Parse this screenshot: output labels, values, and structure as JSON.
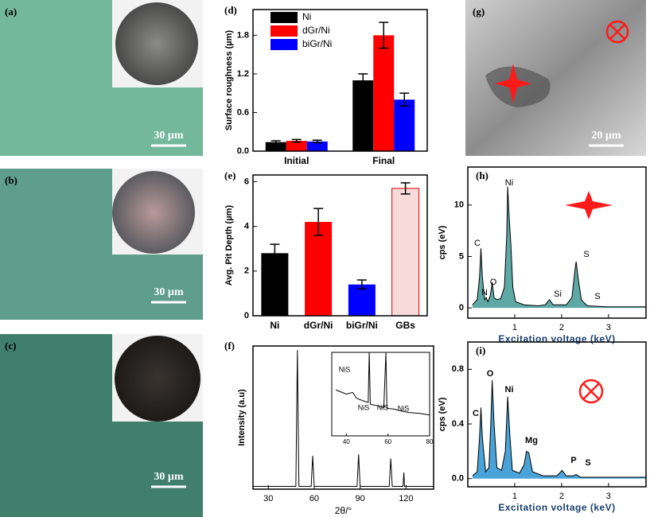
{
  "panels": [
    {
      "label": "(a)",
      "scale_bar": "30 µm"
    },
    {
      "label": "(b)",
      "scale_bar": "30 µm"
    },
    {
      "label": "(c)",
      "scale_bar": "30 µm"
    },
    {
      "label": "(g)",
      "scale_bar": "20 µm"
    }
  ],
  "chart_data": [
    {
      "type": "bar",
      "label": "(d)",
      "ylabel": "Surface roughness (µm)",
      "categories": [
        "Initial",
        "Final"
      ],
      "series": [
        {
          "name": "Ni",
          "color": "#000000",
          "values": [
            0.14,
            1.1
          ],
          "errors": [
            0.02,
            0.1
          ]
        },
        {
          "name": "dGr/Ni",
          "color": "#ff0000",
          "values": [
            0.16,
            1.8
          ],
          "errors": [
            0.02,
            0.2
          ]
        },
        {
          "name": "biGr/Ni",
          "color": "#0000ff",
          "values": [
            0.15,
            0.8
          ],
          "errors": [
            0.02,
            0.1
          ]
        }
      ],
      "ylim": [
        0,
        2.2
      ],
      "yticks": [
        {
          "value": 0,
          "label": "0.0"
        },
        0.6,
        1.2,
        1.8
      ],
      "legend": "upper left"
    },
    {
      "type": "bar",
      "label": "(e)",
      "ylabel": "Avg. Pit Depth (µm)",
      "categories": [
        "Ni",
        "dGr/Ni",
        "biGr/Ni",
        "GBs"
      ],
      "values": [
        2.8,
        4.2,
        1.4,
        5.7
      ],
      "errors": [
        0.4,
        0.6,
        0.2,
        0.25
      ],
      "colors": [
        "#000000",
        "#ff0000",
        "#0000ff",
        "#f7dada"
      ],
      "ylim": [
        0,
        6.3
      ],
      "yticks": [
        0,
        2,
        4,
        6
      ]
    },
    {
      "type": "line",
      "label": "(f)",
      "xlabel": "2θ/°",
      "ylabel": "Intensity (a.u)",
      "x": [
        20,
        48,
        49,
        50,
        58,
        59,
        60,
        88,
        89,
        90,
        109,
        110,
        111,
        118,
        118.6,
        119,
        138
      ],
      "values": [
        0.02,
        0.02,
        1.0,
        0.02,
        0.02,
        0.24,
        0.02,
        0.02,
        0.25,
        0.02,
        0.02,
        0.22,
        0.02,
        0.02,
        0.12,
        0.02,
        0.02
      ],
      "xlim": [
        20,
        138
      ],
      "ylim": [
        0,
        1.03
      ],
      "xticks": [
        30,
        60,
        90,
        120
      ],
      "inset": {
        "x": [
          35,
          40,
          43,
          45,
          48,
          50.5,
          51,
          51.5,
          55,
          58,
          59,
          59.5,
          63,
          66,
          70,
          75,
          80
        ],
        "values": [
          0.55,
          0.5,
          0.52,
          0.45,
          0.42,
          0.4,
          1.0,
          0.38,
          0.36,
          0.34,
          1.0,
          0.33,
          0.32,
          0.3,
          0.28,
          0.27,
          0.25
        ],
        "xlim": [
          33,
          80
        ],
        "ylim": [
          0,
          1
        ],
        "xticks": [
          40,
          60,
          80
        ],
        "annotations": [
          "NiS",
          "NiS",
          "NiS",
          "NiS"
        ]
      }
    },
    {
      "type": "area",
      "label": "(h)",
      "xlabel": "Excitation voltage (keV)",
      "ylabel": "cps (eV)",
      "color": "#5ea9a6",
      "x": [
        0.1,
        0.2,
        0.25,
        0.28,
        0.31,
        0.36,
        0.39,
        0.43,
        0.48,
        0.52,
        0.56,
        0.62,
        0.7,
        0.78,
        0.83,
        0.85,
        0.88,
        0.92,
        0.96,
        1.02,
        1.2,
        1.5,
        1.65,
        1.74,
        1.82,
        2.1,
        2.22,
        2.28,
        2.31,
        2.35,
        2.42,
        2.46,
        2.55,
        3.0,
        3.5,
        3.8
      ],
      "values": [
        0.3,
        0.8,
        3.0,
        5.8,
        3.0,
        0.8,
        1.0,
        0.6,
        1.2,
        2.5,
        1.0,
        0.8,
        0.9,
        2.0,
        7,
        11.8,
        9,
        6,
        2,
        0.6,
        0.3,
        0.2,
        0.3,
        0.8,
        0.3,
        0.3,
        1.0,
        3.5,
        4.5,
        3.0,
        0.8,
        0.6,
        0.2,
        0.1,
        0.1,
        0.1
      ],
      "xlim": [
        0,
        3.8
      ],
      "ylim": [
        -1,
        13.7
      ],
      "xticks": [
        1,
        2,
        3
      ],
      "yticks": [
        0,
        5,
        10
      ],
      "annotations": [
        "C",
        "N",
        "O",
        "Ni",
        "Si",
        "S",
        "S"
      ]
    },
    {
      "type": "area",
      "label": "(i)",
      "xlabel": "Excitation voltage (keV)",
      "ylabel": "cps (eV)",
      "color": "#4aa3d8",
      "x": [
        0.1,
        0.2,
        0.25,
        0.28,
        0.31,
        0.38,
        0.45,
        0.49,
        0.52,
        0.56,
        0.62,
        0.72,
        0.8,
        0.85,
        0.9,
        0.95,
        1.1,
        1.2,
        1.25,
        1.3,
        1.38,
        1.6,
        1.9,
        2.01,
        2.1,
        2.25,
        2.31,
        2.4,
        3.0,
        3.8
      ],
      "values": [
        0.02,
        0.05,
        0.3,
        0.52,
        0.3,
        0.05,
        0.08,
        0.4,
        0.72,
        0.4,
        0.08,
        0.06,
        0.2,
        0.6,
        0.3,
        0.06,
        0.04,
        0.1,
        0.2,
        0.19,
        0.05,
        0.02,
        0.02,
        0.06,
        0.02,
        0.02,
        0.03,
        0.01,
        0.01,
        0.01
      ],
      "xlim": [
        0,
        3.8
      ],
      "ylim": [
        -0.06,
        1.0
      ],
      "xticks": [
        1,
        2,
        3
      ],
      "yticks": [
        {
          "value": 0,
          "label": "0.0"
        },
        0.4,
        0.8
      ],
      "annotations": [
        "C",
        "O",
        "Ni",
        "Mg",
        "P",
        "S"
      ]
    }
  ]
}
